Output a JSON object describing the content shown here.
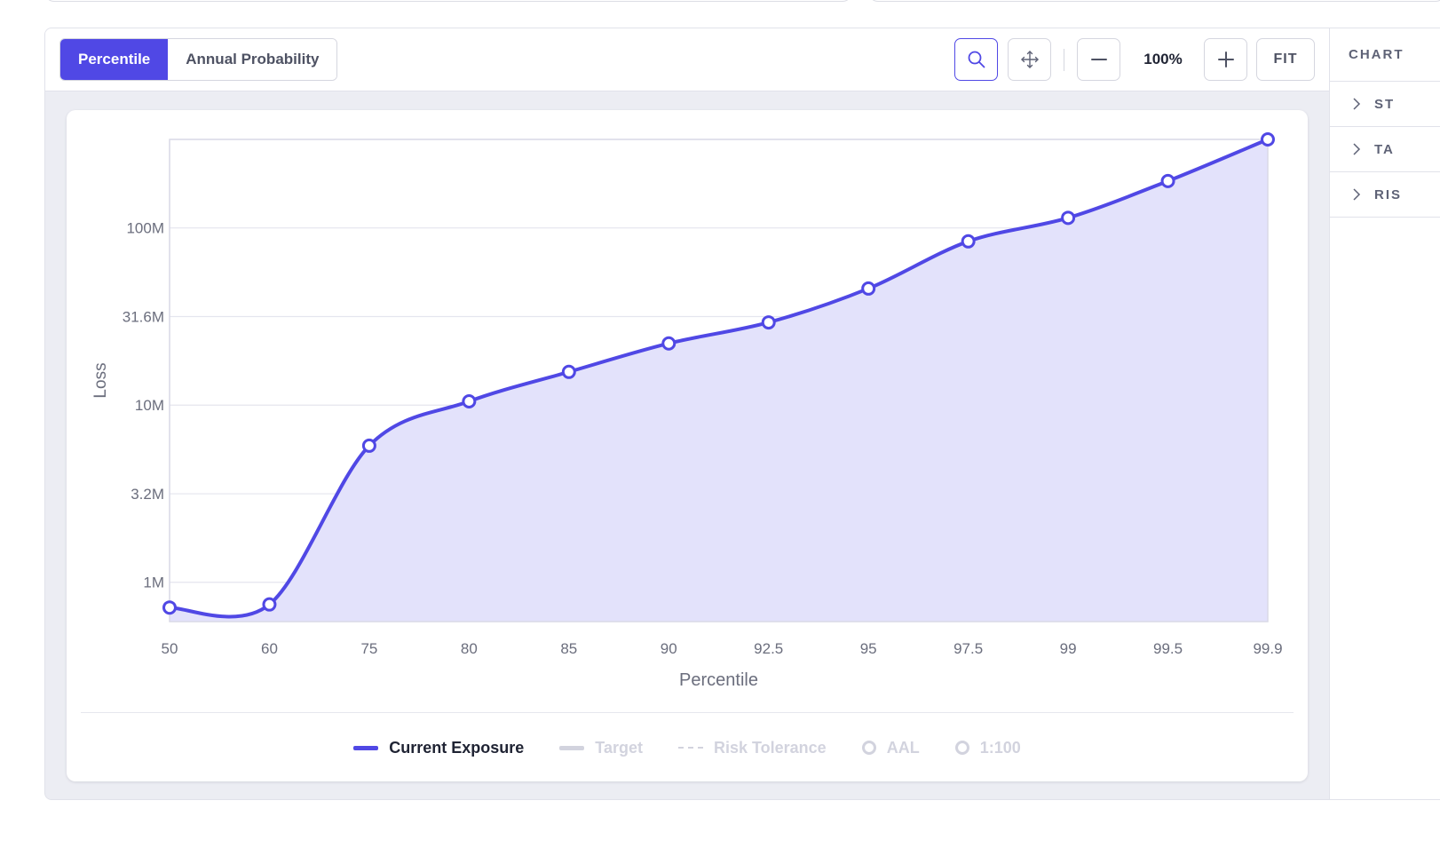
{
  "toolbar": {
    "tabs": [
      {
        "label": "Percentile",
        "active": true
      },
      {
        "label": "Annual Probability",
        "active": false
      }
    ],
    "zoom": "100%",
    "fit_label": "FIT",
    "icons": {
      "search": "search-icon",
      "pan": "pan-arrows-icon",
      "zoom_out": "minus-icon",
      "zoom_in": "plus-icon"
    }
  },
  "sidepanel": {
    "title": "CHART",
    "items": [
      {
        "label": "ST"
      },
      {
        "label": "TA"
      },
      {
        "label": "RIS"
      }
    ]
  },
  "colors": {
    "accent": "#5048e5",
    "area_fill": "#e3e2fb",
    "muted": "#d2d3de"
  },
  "legend": [
    {
      "label": "Current Exposure",
      "swatch": "line",
      "active": true
    },
    {
      "label": "Target",
      "swatch": "line",
      "active": false
    },
    {
      "label": "Risk Tolerance",
      "swatch": "dash",
      "active": false
    },
    {
      "label": "AAL",
      "swatch": "circle",
      "active": false
    },
    {
      "label": "1:100",
      "swatch": "circle",
      "active": false
    }
  ],
  "chart_data": {
    "type": "area",
    "title": "",
    "xlabel": "Percentile",
    "ylabel": "Loss",
    "y_scale": "log",
    "categories": [
      "50",
      "60",
      "75",
      "80",
      "85",
      "90",
      "92.5",
      "95",
      "97.5",
      "99",
      "99.5",
      "99.9"
    ],
    "y_ticks": [
      {
        "label": "1M",
        "value": 1000000
      },
      {
        "label": "3.2M",
        "value": 3160000
      },
      {
        "label": "10M",
        "value": 10000000
      },
      {
        "label": "31.6M",
        "value": 31600000
      },
      {
        "label": "100M",
        "value": 100000000
      }
    ],
    "ylim": [
      600000,
      316000000
    ],
    "grid": true,
    "legend_position": "bottom",
    "series": [
      {
        "name": "Current Exposure",
        "values": [
          720000,
          750000,
          5900000,
          10500000,
          15400000,
          22300000,
          29300000,
          45500000,
          84000000,
          114000000,
          184000000,
          316000000
        ]
      }
    ]
  }
}
